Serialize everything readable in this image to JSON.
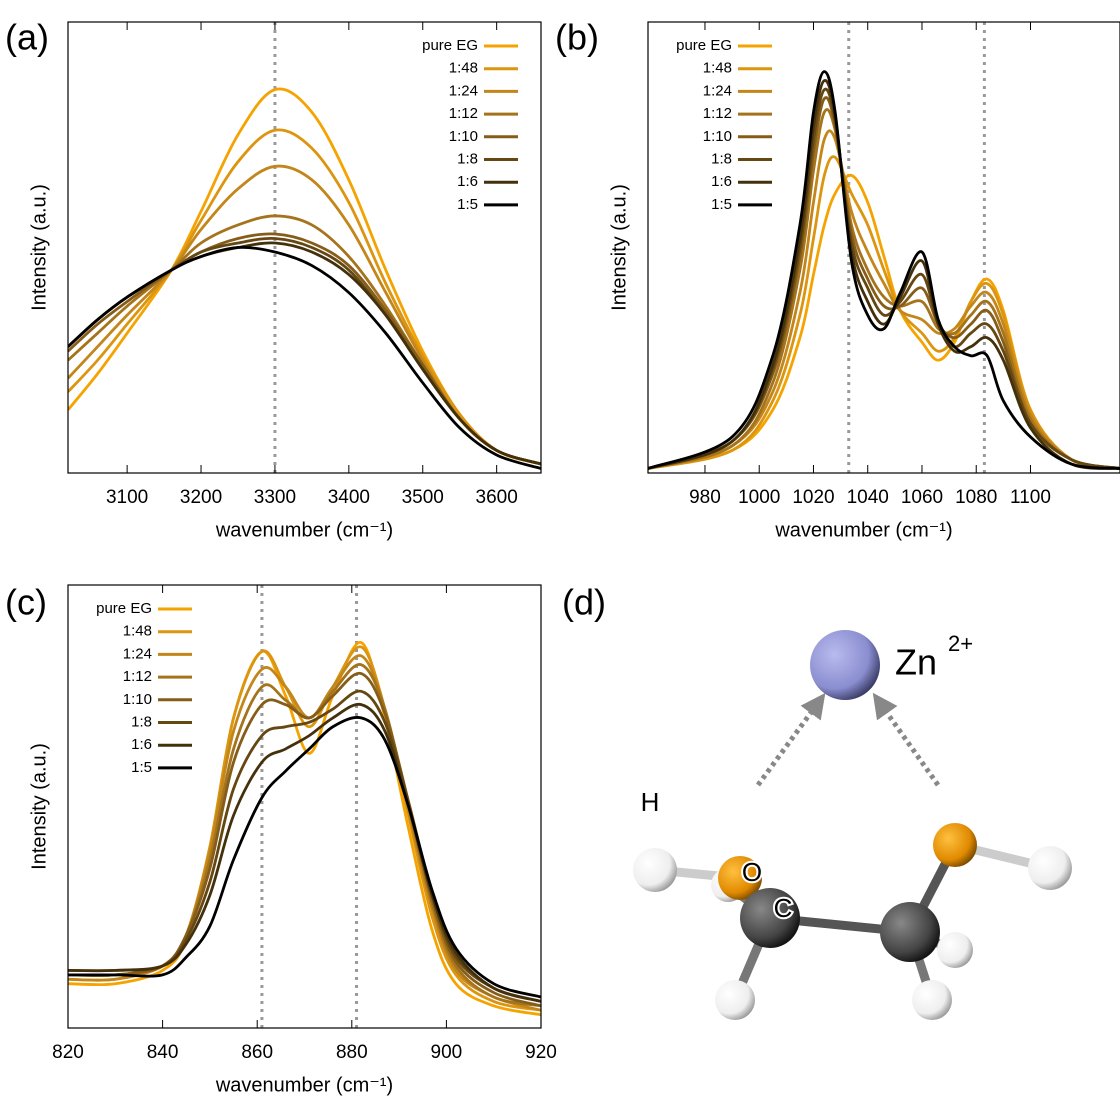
{
  "chart_data": [
    {
      "type": "line",
      "label": "(a)",
      "xlabel": "wavenumber (cm⁻¹)",
      "ylabel": "Intensity (a.u.)",
      "xlim": [
        3020,
        3660
      ],
      "xticks": [
        3100,
        3200,
        3300,
        3400,
        3500,
        3600
      ],
      "ylim": [
        0,
        1
      ],
      "vlines": [
        3300
      ],
      "legend": "top-right",
      "x": [
        3020,
        3060,
        3100,
        3160,
        3200,
        3250,
        3300,
        3350,
        3400,
        3450,
        3500,
        3550,
        3600,
        3660
      ],
      "series": [
        {
          "name": "pure EG",
          "color": "#f5a300",
          "values": [
            0.14,
            0.22,
            0.31,
            0.45,
            0.58,
            0.75,
            0.85,
            0.8,
            0.65,
            0.45,
            0.27,
            0.13,
            0.05,
            0.02
          ]
        },
        {
          "name": "1:48",
          "color": "#dc9510",
          "values": [
            0.18,
            0.25,
            0.33,
            0.45,
            0.56,
            0.69,
            0.76,
            0.72,
            0.6,
            0.42,
            0.26,
            0.13,
            0.05,
            0.02
          ]
        },
        {
          "name": "1:24",
          "color": "#c3861a",
          "values": [
            0.21,
            0.28,
            0.35,
            0.45,
            0.54,
            0.63,
            0.68,
            0.65,
            0.55,
            0.4,
            0.25,
            0.12,
            0.05,
            0.02
          ]
        },
        {
          "name": "1:12",
          "color": "#a5731c",
          "values": [
            0.25,
            0.31,
            0.37,
            0.45,
            0.51,
            0.55,
            0.57,
            0.55,
            0.48,
            0.37,
            0.24,
            0.12,
            0.05,
            0.02
          ]
        },
        {
          "name": "1:10",
          "color": "#855d18",
          "values": [
            0.27,
            0.33,
            0.38,
            0.45,
            0.49,
            0.52,
            0.53,
            0.51,
            0.46,
            0.36,
            0.24,
            0.12,
            0.05,
            0.02
          ]
        },
        {
          "name": "1:8",
          "color": "#654712",
          "values": [
            0.28,
            0.34,
            0.39,
            0.45,
            0.49,
            0.51,
            0.52,
            0.5,
            0.45,
            0.35,
            0.23,
            0.12,
            0.05,
            0.02
          ]
        },
        {
          "name": "1:6",
          "color": "#44310c",
          "values": [
            0.28,
            0.34,
            0.39,
            0.45,
            0.48,
            0.5,
            0.51,
            0.49,
            0.44,
            0.35,
            0.23,
            0.12,
            0.05,
            0.02
          ]
        },
        {
          "name": "1:5",
          "color": "#000000",
          "values": [
            0.28,
            0.34,
            0.39,
            0.45,
            0.48,
            0.5,
            0.49,
            0.46,
            0.4,
            0.31,
            0.2,
            0.1,
            0.04,
            0.01
          ]
        }
      ]
    },
    {
      "type": "line",
      "label": "(b)",
      "xlabel": "wavenumber (cm⁻¹)",
      "ylabel": "Intensity (a.u.)",
      "xlim": [
        959,
        1133
      ],
      "xticks": [
        980,
        1000,
        1020,
        1040,
        1060,
        1080,
        1100
      ],
      "ylim": [
        0,
        1
      ],
      "vlines": [
        1033,
        1083
      ],
      "legend": "top-left",
      "x": [
        959,
        990,
        1005,
        1015,
        1020,
        1024,
        1028,
        1034,
        1040,
        1046,
        1052,
        1060,
        1066,
        1072,
        1078,
        1084,
        1090,
        1100,
        1115,
        1133
      ],
      "series": [
        {
          "name": "pure EG",
          "color": "#f5a300",
          "values": [
            0.01,
            0.05,
            0.14,
            0.3,
            0.44,
            0.55,
            0.62,
            0.66,
            0.6,
            0.48,
            0.36,
            0.29,
            0.25,
            0.29,
            0.38,
            0.43,
            0.36,
            0.14,
            0.03,
            0.01
          ]
        },
        {
          "name": "1:48",
          "color": "#dc9510",
          "values": [
            0.01,
            0.05,
            0.16,
            0.35,
            0.52,
            0.66,
            0.7,
            0.62,
            0.55,
            0.45,
            0.36,
            0.31,
            0.27,
            0.3,
            0.38,
            0.42,
            0.35,
            0.14,
            0.03,
            0.01
          ]
        },
        {
          "name": "1:24",
          "color": "#c3861a",
          "values": [
            0.01,
            0.06,
            0.18,
            0.4,
            0.6,
            0.74,
            0.74,
            0.58,
            0.49,
            0.42,
            0.36,
            0.34,
            0.31,
            0.32,
            0.37,
            0.4,
            0.33,
            0.13,
            0.03,
            0.01
          ]
        },
        {
          "name": "1:12",
          "color": "#a5731c",
          "values": [
            0.01,
            0.06,
            0.2,
            0.45,
            0.67,
            0.8,
            0.76,
            0.55,
            0.45,
            0.39,
            0.37,
            0.38,
            0.32,
            0.31,
            0.35,
            0.38,
            0.31,
            0.12,
            0.03,
            0.01
          ]
        },
        {
          "name": "1:10",
          "color": "#855d18",
          "values": [
            0.01,
            0.07,
            0.22,
            0.48,
            0.71,
            0.83,
            0.77,
            0.53,
            0.43,
            0.37,
            0.37,
            0.41,
            0.33,
            0.3,
            0.33,
            0.36,
            0.29,
            0.11,
            0.03,
            0.01
          ]
        },
        {
          "name": "1:8",
          "color": "#654712",
          "values": [
            0.01,
            0.07,
            0.23,
            0.5,
            0.74,
            0.85,
            0.78,
            0.51,
            0.41,
            0.35,
            0.38,
            0.44,
            0.33,
            0.28,
            0.31,
            0.33,
            0.27,
            0.11,
            0.03,
            0.01
          ]
        },
        {
          "name": "1:6",
          "color": "#44310c",
          "values": [
            0.01,
            0.07,
            0.24,
            0.52,
            0.77,
            0.87,
            0.79,
            0.49,
            0.38,
            0.33,
            0.39,
            0.47,
            0.33,
            0.27,
            0.28,
            0.3,
            0.25,
            0.1,
            0.02,
            0.01
          ]
        },
        {
          "name": "1:5",
          "color": "#000000",
          "values": [
            0.01,
            0.08,
            0.26,
            0.55,
            0.8,
            0.89,
            0.8,
            0.47,
            0.35,
            0.32,
            0.4,
            0.49,
            0.34,
            0.28,
            0.26,
            0.26,
            0.16,
            0.08,
            0.02,
            0.01
          ]
        }
      ]
    },
    {
      "type": "line",
      "label": "(c)",
      "xlabel": "wavenumber (cm⁻¹)",
      "ylabel": "Intensity (a.u.)",
      "xlim": [
        820,
        920
      ],
      "xticks": [
        820,
        840,
        860,
        880,
        900,
        920
      ],
      "ylim": [
        0,
        1
      ],
      "vlines": [
        861,
        881
      ],
      "legend": "top-left",
      "x": [
        820,
        830,
        840,
        845,
        850,
        855,
        861,
        866,
        871,
        876,
        882,
        887,
        892,
        897,
        902,
        910,
        920
      ],
      "series": [
        {
          "name": "pure EG",
          "color": "#f5a300",
          "values": [
            0.1,
            0.1,
            0.13,
            0.2,
            0.4,
            0.7,
            0.85,
            0.75,
            0.62,
            0.75,
            0.87,
            0.7,
            0.45,
            0.22,
            0.1,
            0.05,
            0.03
          ]
        },
        {
          "name": "1:48",
          "color": "#dc9510",
          "values": [
            0.11,
            0.11,
            0.14,
            0.21,
            0.41,
            0.7,
            0.85,
            0.77,
            0.68,
            0.77,
            0.86,
            0.72,
            0.48,
            0.25,
            0.12,
            0.06,
            0.04
          ]
        },
        {
          "name": "1:24",
          "color": "#c3861a",
          "values": [
            0.11,
            0.11,
            0.14,
            0.21,
            0.4,
            0.67,
            0.81,
            0.77,
            0.7,
            0.77,
            0.84,
            0.72,
            0.49,
            0.27,
            0.13,
            0.07,
            0.04
          ]
        },
        {
          "name": "1:12",
          "color": "#a5731c",
          "values": [
            0.12,
            0.12,
            0.14,
            0.21,
            0.38,
            0.63,
            0.77,
            0.74,
            0.7,
            0.76,
            0.82,
            0.72,
            0.5,
            0.28,
            0.14,
            0.07,
            0.05
          ]
        },
        {
          "name": "1:10",
          "color": "#855d18",
          "values": [
            0.12,
            0.12,
            0.14,
            0.21,
            0.36,
            0.6,
            0.73,
            0.73,
            0.7,
            0.75,
            0.8,
            0.71,
            0.51,
            0.29,
            0.15,
            0.08,
            0.05
          ]
        },
        {
          "name": "1:8",
          "color": "#654712",
          "values": [
            0.13,
            0.13,
            0.14,
            0.2,
            0.33,
            0.54,
            0.66,
            0.68,
            0.69,
            0.72,
            0.76,
            0.69,
            0.51,
            0.3,
            0.16,
            0.09,
            0.06
          ]
        },
        {
          "name": "1:6",
          "color": "#44310c",
          "values": [
            0.13,
            0.13,
            0.14,
            0.19,
            0.3,
            0.48,
            0.6,
            0.63,
            0.66,
            0.7,
            0.73,
            0.67,
            0.5,
            0.3,
            0.17,
            0.09,
            0.06
          ]
        },
        {
          "name": "1:5",
          "color": "#000000",
          "values": [
            0.12,
            0.12,
            0.12,
            0.16,
            0.23,
            0.38,
            0.52,
            0.58,
            0.63,
            0.68,
            0.7,
            0.65,
            0.5,
            0.31,
            0.18,
            0.1,
            0.07
          ]
        }
      ]
    }
  ],
  "diagram": {
    "label": "(d)",
    "ion": "Zn",
    "ion_charge": "2+",
    "atoms": [
      "H",
      "O",
      "C"
    ]
  }
}
